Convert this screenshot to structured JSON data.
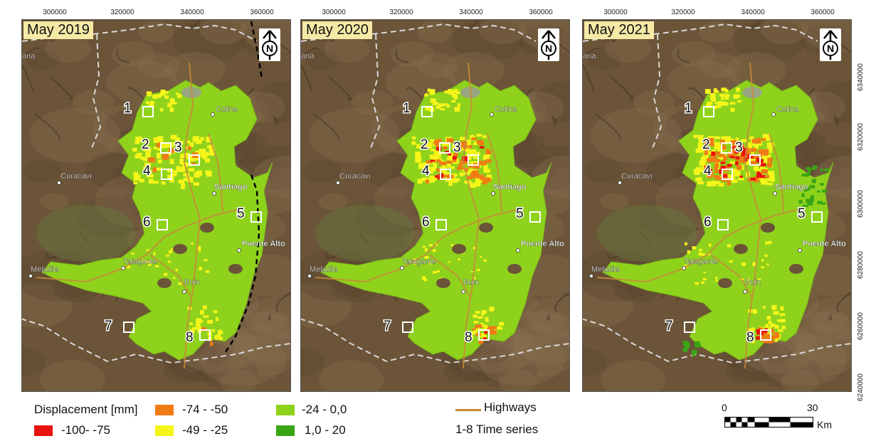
{
  "panels": [
    {
      "title": "May 2019",
      "east_line": true
    },
    {
      "title": "May 2020",
      "east_line": false
    },
    {
      "title": "May 2021",
      "east_line": false
    }
  ],
  "x_ticks": [
    "300000",
    "320000",
    "340000",
    "360000"
  ],
  "y_ticks": [
    "6340000",
    "6320000",
    "6300000",
    "6280000",
    "6260000",
    "6240000"
  ],
  "places": [
    "Colina",
    "Curacaví",
    "Santiago",
    "Puente Alto",
    "Talagante",
    "Melipilla",
    "Buin",
    "ana"
  ],
  "site_labels": [
    "1",
    "2",
    "3",
    "4",
    "5",
    "6",
    "7",
    "8"
  ],
  "north_arrow_letter": "N",
  "legend": {
    "title": "Displacement [mm]",
    "classes": [
      {
        "label": "-100- -75",
        "color": "#e8120e"
      },
      {
        "label": "-74 - -50",
        "color": "#f07b15"
      },
      {
        "label": "-49 - -25",
        "color": "#f5f51a"
      },
      {
        "label": "-24 - 0,0",
        "color": "#8fd21c"
      },
      {
        "label": "1,0 - 20",
        "color": "#3aa514"
      }
    ],
    "highways_label": "Highways",
    "highway_color": "#c9893a",
    "time_series_label": "1-8 Time series"
  },
  "scalebar": {
    "zero": "0",
    "max": "30",
    "unit": "Km"
  }
}
